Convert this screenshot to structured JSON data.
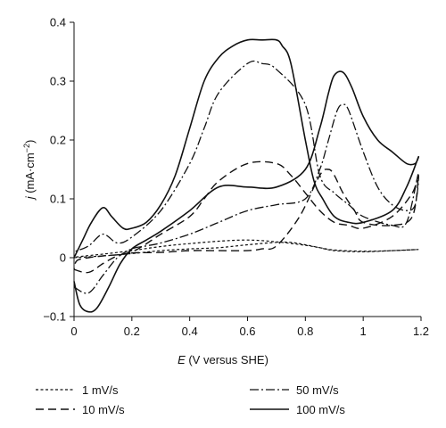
{
  "chart_data": {
    "type": "line",
    "title": "",
    "xlabel_var": "E",
    "xlabel_rest": " (V versus SHE)",
    "ylabel_var": "j",
    "ylabel_rest": " (mA·cm",
    "ylabel_sup": "−2",
    "ylabel_close": ")",
    "xlim": [
      0,
      1.2
    ],
    "ylim": [
      -0.1,
      0.4
    ],
    "xticks": [
      "0",
      "0.2",
      "0.4",
      "0.6",
      "0.8",
      "1",
      "1.2"
    ],
    "xtick_values": [
      0,
      0.2,
      0.4,
      0.6,
      0.8,
      1.0,
      1.2
    ],
    "yticks": [
      "−0.1",
      "0",
      "0.1",
      "0.2",
      "0.3",
      "0.4"
    ],
    "ytick_values": [
      -0.1,
      0,
      0.1,
      0.2,
      0.3,
      0.4
    ],
    "grid": false,
    "legend_position": "bottom",
    "series": [
      {
        "name": "1 mV/s",
        "dash": "3,2.5",
        "width": 1.2,
        "x": [
          0.0,
          0.1,
          0.2,
          0.3,
          0.4,
          0.5,
          0.6,
          0.7,
          0.75,
          0.8,
          0.85,
          0.9,
          1.0,
          1.1,
          1.19,
          1.1,
          1.0,
          0.9,
          0.85,
          0.8,
          0.7,
          0.6,
          0.5,
          0.4,
          0.3,
          0.2,
          0.1,
          0.02,
          0.0
        ],
        "y": [
          0.0,
          0.003,
          0.007,
          0.012,
          0.015,
          0.017,
          0.022,
          0.026,
          0.026,
          0.022,
          0.017,
          0.012,
          0.01,
          0.012,
          0.014,
          0.012,
          0.011,
          0.013,
          0.017,
          0.021,
          0.027,
          0.03,
          0.028,
          0.024,
          0.019,
          0.012,
          0.006,
          0.002,
          0.0
        ]
      },
      {
        "name": "10 mV/s",
        "dash": "9,5",
        "width": 1.4,
        "x": [
          0.0,
          0.05,
          0.1,
          0.15,
          0.2,
          0.3,
          0.4,
          0.5,
          0.6,
          0.65,
          0.7,
          0.78,
          0.85,
          0.88,
          0.9,
          0.93,
          0.97,
          1.0,
          1.1,
          1.17,
          1.19,
          1.17,
          1.1,
          1.0,
          0.95,
          0.9,
          0.85,
          0.8,
          0.75,
          0.7,
          0.6,
          0.5,
          0.45,
          0.4,
          0.3,
          0.2,
          0.1,
          0.05,
          0.01,
          0.0
        ],
        "y": [
          -0.02,
          -0.025,
          -0.01,
          0.003,
          0.008,
          0.009,
          0.012,
          0.012,
          0.012,
          0.015,
          0.02,
          0.07,
          0.14,
          0.15,
          0.14,
          0.11,
          0.08,
          0.06,
          0.055,
          0.07,
          0.14,
          0.11,
          0.07,
          0.05,
          0.055,
          0.06,
          0.08,
          0.11,
          0.14,
          0.16,
          0.16,
          0.13,
          0.1,
          0.07,
          0.04,
          0.01,
          0.003,
          0.0,
          -0.005,
          -0.02
        ]
      },
      {
        "name": "50 mV/s",
        "dash": "10,3,2,3",
        "width": 1.3,
        "x": [
          0.0,
          0.05,
          0.1,
          0.15,
          0.2,
          0.25,
          0.3,
          0.4,
          0.5,
          0.6,
          0.7,
          0.8,
          0.85,
          0.88,
          0.91,
          0.93,
          0.95,
          1.0,
          1.05,
          1.1,
          1.15,
          1.18,
          1.19,
          1.15,
          1.1,
          1.0,
          0.95,
          0.9,
          0.85,
          0.8,
          0.7,
          0.65,
          0.6,
          0.5,
          0.45,
          0.4,
          0.3,
          0.2,
          0.15,
          0.1,
          0.05,
          0.0
        ],
        "y": [
          -0.05,
          -0.06,
          -0.03,
          0.0,
          0.015,
          0.02,
          0.025,
          0.04,
          0.06,
          0.08,
          0.09,
          0.1,
          0.15,
          0.2,
          0.25,
          0.26,
          0.25,
          0.18,
          0.12,
          0.09,
          0.08,
          0.09,
          0.14,
          0.06,
          0.055,
          0.07,
          0.09,
          0.11,
          0.14,
          0.26,
          0.32,
          0.33,
          0.33,
          0.28,
          0.22,
          0.16,
          0.08,
          0.035,
          0.025,
          0.04,
          0.02,
          0.01
        ]
      },
      {
        "name": "100 mV/s",
        "dash": "",
        "width": 1.6,
        "x": [
          0.0,
          0.02,
          0.05,
          0.08,
          0.12,
          0.16,
          0.2,
          0.25,
          0.3,
          0.4,
          0.5,
          0.6,
          0.7,
          0.8,
          0.85,
          0.88,
          0.9,
          0.93,
          0.96,
          1.0,
          1.05,
          1.1,
          1.15,
          1.18,
          1.19,
          1.15,
          1.1,
          1.0,
          0.95,
          0.9,
          0.86,
          0.83,
          0.8,
          0.75,
          0.72,
          0.7,
          0.65,
          0.6,
          0.55,
          0.5,
          0.45,
          0.4,
          0.35,
          0.3,
          0.25,
          0.2,
          0.17,
          0.13,
          0.1,
          0.06,
          0.03,
          0.0
        ],
        "y": [
          -0.04,
          -0.08,
          -0.092,
          -0.085,
          -0.05,
          -0.01,
          0.015,
          0.03,
          0.045,
          0.08,
          0.12,
          0.12,
          0.12,
          0.15,
          0.22,
          0.28,
          0.31,
          0.315,
          0.29,
          0.24,
          0.2,
          0.18,
          0.16,
          0.16,
          0.17,
          0.12,
          0.08,
          0.06,
          0.06,
          0.07,
          0.1,
          0.13,
          0.2,
          0.33,
          0.36,
          0.37,
          0.37,
          0.37,
          0.36,
          0.34,
          0.3,
          0.22,
          0.14,
          0.09,
          0.06,
          0.05,
          0.05,
          0.07,
          0.085,
          0.06,
          0.03,
          0.0
        ]
      }
    ]
  }
}
